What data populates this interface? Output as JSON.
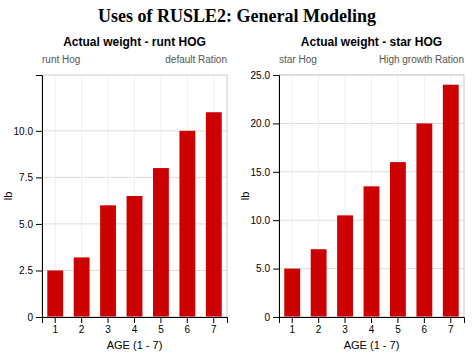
{
  "title": "Uses of RUSLE2: General Modeling",
  "chart_data": [
    {
      "type": "bar",
      "title": "Actual weight - runt HOG",
      "annotations": [
        "runt Hog",
        "default Ration"
      ],
      "categories": [
        "1",
        "2",
        "3",
        "4",
        "5",
        "6",
        "7"
      ],
      "values": [
        2.5,
        3.2,
        6.0,
        6.5,
        8.0,
        10.0,
        11.0
      ],
      "color": "#cc0000",
      "xlabel": "AGE (1 - 7)",
      "ylabel": "lb",
      "ylim": [
        0,
        13
      ],
      "yticks": [
        0,
        2.5,
        {
          "value": 5.0,
          "label": "5.0"
        },
        7.5,
        {
          "value": 10.0,
          "label": "10.0"
        }
      ],
      "grid": true
    },
    {
      "type": "bar",
      "title": "Actual weight - star HOG",
      "annotations": [
        "star Hog",
        "High growth Ration"
      ],
      "categories": [
        "1",
        "2",
        "3",
        "4",
        "5",
        "6",
        "7"
      ],
      "values": [
        5.0,
        7.0,
        10.5,
        13.5,
        16.0,
        20.0,
        24.0
      ],
      "color": "#cc0000",
      "xlabel": "AGE (1 - 7)",
      "ylabel": "lb",
      "ylim": [
        0,
        25
      ],
      "yticks": [
        0,
        {
          "value": 5.0,
          "label": "5.0"
        },
        {
          "value": 10.0,
          "label": "10.0"
        },
        {
          "value": 15.0,
          "label": "15.0"
        },
        {
          "value": 20.0,
          "label": "20.0"
        },
        {
          "value": 25.0,
          "label": "25.0"
        }
      ],
      "grid": true
    }
  ]
}
